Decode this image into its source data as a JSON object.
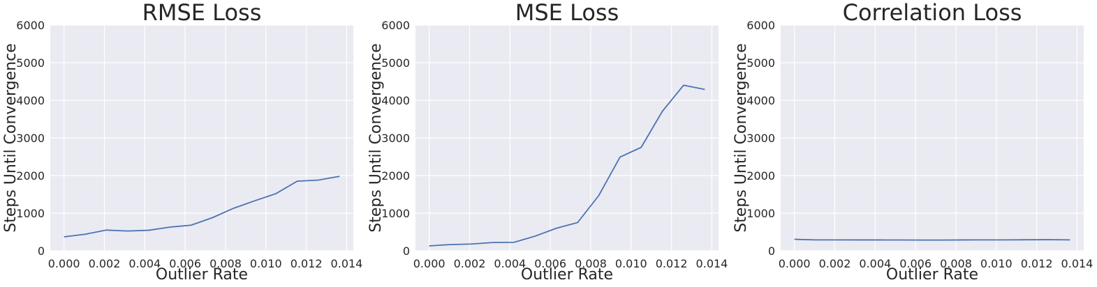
{
  "chart_data": [
    {
      "type": "line",
      "title": "RMSE Loss",
      "x_label": "Outlier Rate",
      "y_label": "Steps Until Convergence",
      "x": [
        0,
        0.00105,
        0.0021,
        0.00315,
        0.0042,
        0.00525,
        0.0063,
        0.00735,
        0.0084,
        0.00945,
        0.0105,
        0.01155,
        0.0126,
        0.01365
      ],
      "series": [
        {
          "color": "#4c72b0",
          "values": [
            370,
            440,
            550,
            525,
            545,
            630,
            680,
            880,
            1130,
            1330,
            1520,
            1850,
            1880,
            1980
          ]
        }
      ],
      "xlim": [
        -0.00068,
        0.01433
      ],
      "ylim": [
        0,
        6000
      ],
      "xticks": [
        {
          "value": 0,
          "label": "0.000"
        },
        {
          "value": 0.002,
          "label": "0.002"
        },
        {
          "value": 0.004,
          "label": "0.004"
        },
        {
          "value": 0.006,
          "label": "0.006"
        },
        {
          "value": 0.008,
          "label": "0.008"
        },
        {
          "value": 0.01,
          "label": "0.010"
        },
        {
          "value": 0.012,
          "label": "0.012"
        },
        {
          "value": 0.014,
          "label": "0.014"
        }
      ],
      "yticks": [
        0,
        1000,
        2000,
        3000,
        4000,
        5000,
        6000
      ],
      "grid": true
    },
    {
      "type": "line",
      "title": "MSE Loss",
      "x_label": "Outlier Rate",
      "y_label": "Steps Until Convergence",
      "x": [
        0,
        0.00105,
        0.0021,
        0.00315,
        0.0042,
        0.00525,
        0.0063,
        0.00735,
        0.0084,
        0.00945,
        0.0105,
        0.01155,
        0.0126,
        0.01365
      ],
      "series": [
        {
          "color": "#4c72b0",
          "values": [
            130,
            165,
            180,
            220,
            225,
            390,
            600,
            750,
            1470,
            2490,
            2750,
            3710,
            4400,
            4290
          ]
        }
      ],
      "xlim": [
        -0.00068,
        0.01433
      ],
      "ylim": [
        0,
        6000
      ],
      "xticks": [
        {
          "value": 0,
          "label": "0.000"
        },
        {
          "value": 0.002,
          "label": "0.002"
        },
        {
          "value": 0.004,
          "label": "0.004"
        },
        {
          "value": 0.006,
          "label": "0.006"
        },
        {
          "value": 0.008,
          "label": "0.008"
        },
        {
          "value": 0.01,
          "label": "0.010"
        },
        {
          "value": 0.012,
          "label": "0.012"
        },
        {
          "value": 0.014,
          "label": "0.014"
        }
      ],
      "yticks": [
        0,
        1000,
        2000,
        3000,
        4000,
        5000,
        6000
      ],
      "grid": true
    },
    {
      "type": "line",
      "title": "Correlation Loss",
      "x_label": "Outlier Rate",
      "y_label": "Steps Until Convergence",
      "x": [
        0,
        0.00105,
        0.0021,
        0.00315,
        0.0042,
        0.00525,
        0.0063,
        0.00735,
        0.0084,
        0.00945,
        0.0105,
        0.01155,
        0.0126,
        0.01365
      ],
      "series": [
        {
          "color": "#4c72b0",
          "values": [
            305,
            290,
            290,
            288,
            288,
            287,
            285,
            285,
            288,
            290,
            290,
            293,
            295,
            290
          ]
        }
      ],
      "xlim": [
        -0.00068,
        0.01433
      ],
      "ylim": [
        0,
        6000
      ],
      "xticks": [
        {
          "value": 0,
          "label": "0.000"
        },
        {
          "value": 0.002,
          "label": "0.002"
        },
        {
          "value": 0.004,
          "label": "0.004"
        },
        {
          "value": 0.006,
          "label": "0.006"
        },
        {
          "value": 0.008,
          "label": "0.008"
        },
        {
          "value": 0.01,
          "label": "0.010"
        },
        {
          "value": 0.012,
          "label": "0.012"
        },
        {
          "value": 0.014,
          "label": "0.014"
        }
      ],
      "yticks": [
        0,
        1000,
        2000,
        3000,
        4000,
        5000,
        6000
      ],
      "grid": true
    }
  ]
}
